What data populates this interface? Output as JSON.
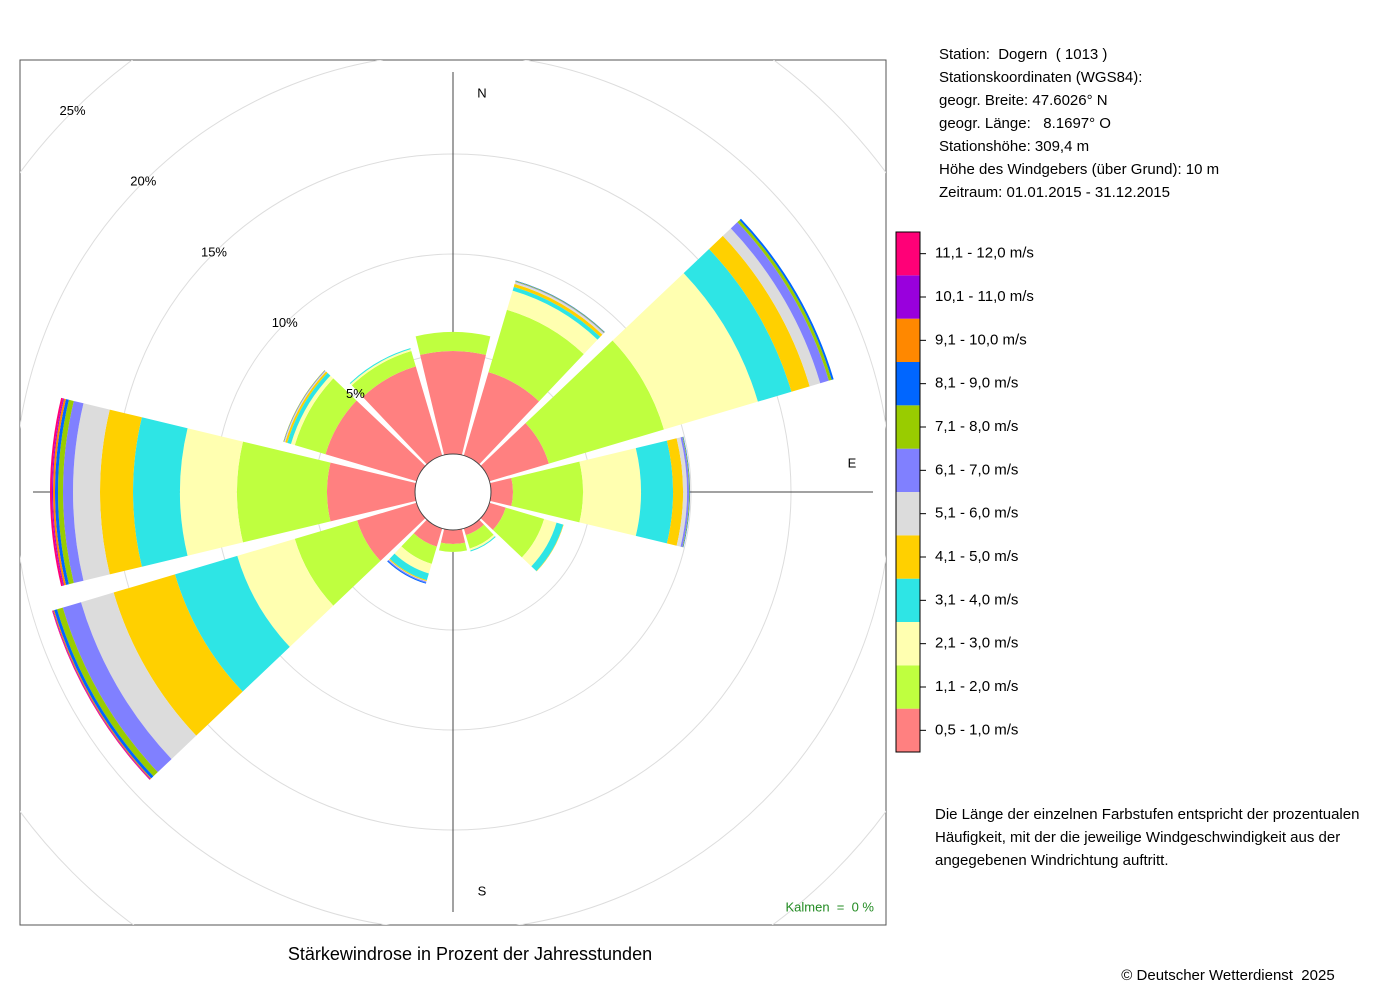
{
  "chart_data": {
    "type": "windrose",
    "title": "Stärkewindrose in Prozent der Jahresstunden",
    "directions": [
      0,
      30,
      60,
      90,
      120,
      150,
      180,
      210,
      240,
      270,
      300,
      330
    ],
    "compass": [
      {
        "value": 0,
        "label": "N"
      },
      {
        "value": 90,
        "label": "E"
      },
      {
        "value": 180,
        "label": "S"
      }
    ],
    "ylim": [
      0,
      25
    ],
    "yticks": [
      {
        "value": 5,
        "label": "5%"
      },
      {
        "value": 10,
        "label": "10%"
      },
      {
        "value": 15,
        "label": "15%"
      },
      {
        "value": 20,
        "label": "20%"
      },
      {
        "value": 25,
        "label": "25%"
      }
    ],
    "grid": true,
    "calm_label": "Kalmen  =  0 %",
    "series": [
      {
        "name": "0,5 - 1,0 m/s",
        "color": "#ff8080",
        "values": [
          5.15,
          4.35,
          3.1,
          1.1,
          0.85,
          0.35,
          0.7,
          0.95,
          3.1,
          4.4,
          4.75,
          4.65
        ]
      },
      {
        "name": "1,1 - 2,0 m/s",
        "color": "#bfff3f",
        "values": [
          0.95,
          3.25,
          6.0,
          3.5,
          2.0,
          0.7,
          0.4,
          0.9,
          3.25,
          4.5,
          1.6,
          0.8
        ]
      },
      {
        "name": "2,1 - 3,0 m/s",
        "color": "#ffffb0",
        "values": [
          0,
          1.0,
          4.9,
          2.9,
          0.65,
          0.1,
          0,
          0.5,
          3.0,
          2.85,
          0.2,
          0.1
        ]
      },
      {
        "name": "3,1 - 4,0 m/s",
        "color": "#2ee5e5",
        "values": [
          0,
          0.2,
          1.75,
          1.6,
          0.35,
          0.05,
          0,
          0.35,
          3.25,
          2.35,
          0.2,
          0.05
        ]
      },
      {
        "name": "4,1 - 5,0 m/s",
        "color": "#ffd000",
        "values": [
          0,
          0.15,
          0.95,
          0.5,
          0.02,
          0,
          0,
          0.05,
          3.2,
          1.65,
          0.1,
          0
        ]
      },
      {
        "name": "5,1 - 6,0 m/s",
        "color": "#dcdcdc",
        "values": [
          0,
          0.1,
          0.55,
          0.2,
          0,
          0,
          0,
          0.03,
          1.7,
          1.35,
          0.05,
          0
        ]
      },
      {
        "name": "6,1 - 7,0 m/s",
        "color": "#8080ff",
        "values": [
          0,
          0.03,
          0.45,
          0.1,
          0,
          0,
          0,
          0.05,
          0.95,
          0.5,
          0.03,
          0
        ]
      },
      {
        "name": "7,1 - 8,0 m/s",
        "color": "#99cc00",
        "values": [
          0,
          0.03,
          0.15,
          0.03,
          0,
          0,
          0,
          0,
          0.3,
          0.25,
          0.02,
          0
        ]
      },
      {
        "name": "8,1 - 9,0 m/s",
        "color": "#0066ff",
        "values": [
          0,
          0.02,
          0.1,
          0.02,
          0,
          0,
          0,
          0.05,
          0.15,
          0.15,
          0,
          0
        ]
      },
      {
        "name": "9,1 - 10,0 m/s",
        "color": "#ff8800",
        "values": [
          0,
          0,
          0,
          0,
          0,
          0,
          0,
          0,
          0.05,
          0.1,
          0,
          0
        ]
      },
      {
        "name": "10,1 - 11,0 m/s",
        "color": "#9900dd",
        "values": [
          0,
          0,
          0,
          0,
          0,
          0,
          0,
          0,
          0.03,
          0.05,
          0,
          0
        ]
      },
      {
        "name": "11,1 - 12,0 m/s",
        "color": "#ff0077",
        "values": [
          0,
          0,
          0,
          0,
          0,
          0,
          0,
          0,
          0.03,
          0.1,
          0,
          0
        ]
      }
    ]
  },
  "station_info": [
    "Station:  Dogern  ( 1013 )",
    "Stationskoordinaten (WGS84):",
    "geogr. Breite: 47.6026° N",
    "geogr. Länge:   8.1697° O",
    "Stationshöhe: 309,4 m",
    "Höhe des Windgebers (über Grund): 10 m",
    "Zeitraum: 01.01.2015 - 31.12.2015"
  ],
  "description": [
    "Die Länge der einzelnen Farbstufen entspricht der prozentualen",
    "Häufigkeit, mit der die jeweilige Windgeschwindigkeit aus der",
    "angegebenen Windrichtung auftritt."
  ],
  "copyright": "© Deutscher Wetterdienst  2025"
}
